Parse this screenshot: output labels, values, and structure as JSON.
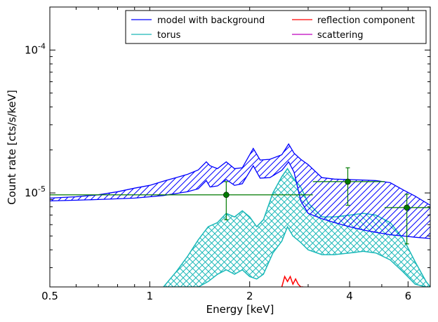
{
  "chart_data": {
    "type": "line",
    "title": "",
    "xlabel": "Energy [keV]",
    "ylabel": "Count rate [cts/s/keV]",
    "xscale": "log",
    "yscale": "log",
    "xlim": [
      0.5,
      7.0
    ],
    "ylim": [
      2.2e-06,
      0.0002
    ],
    "grid": false,
    "legend_position": "top-right",
    "x_ticks": [
      {
        "value": 0.5,
        "label": "0.5"
      },
      {
        "value": 1,
        "label": "1"
      },
      {
        "value": 2,
        "label": "2"
      },
      {
        "value": 4,
        "label": "4"
      },
      {
        "value": 6,
        "label": "6"
      }
    ],
    "y_ticks": [
      {
        "value": 1e-05,
        "base": "10",
        "exp": "-5"
      },
      {
        "value": 0.0001,
        "base": "10",
        "exp": "-4"
      }
    ],
    "series": [
      {
        "name": "model with background",
        "color": "#0000ff",
        "style": "hatched band",
        "x": [
          0.5,
          0.6,
          0.7,
          0.8,
          0.9,
          1.0,
          1.1,
          1.2,
          1.3,
          1.4,
          1.48,
          1.52,
          1.6,
          1.7,
          1.8,
          1.9,
          2.05,
          2.15,
          2.3,
          2.5,
          2.62,
          2.72,
          2.85,
          3.0,
          3.3,
          3.6,
          4.0,
          4.4,
          4.8,
          5.3,
          5.8,
          6.3,
          7.0
        ],
        "upper": [
          9.2e-06,
          9.4e-06,
          9.7e-06,
          1.02e-05,
          1.08e-05,
          1.13e-05,
          1.21e-05,
          1.28e-05,
          1.35e-05,
          1.45e-05,
          1.65e-05,
          1.55e-05,
          1.48e-05,
          1.65e-05,
          1.48e-05,
          1.5e-05,
          2.05e-05,
          1.7e-05,
          1.72e-05,
          1.85e-05,
          2.2e-05,
          1.9e-05,
          1.72e-05,
          1.58e-05,
          1.28e-05,
          1.25e-05,
          1.24e-05,
          1.23e-05,
          1.22e-05,
          1.18e-05,
          1.05e-05,
          9.5e-06,
          8.2e-06
        ],
        "lower": [
          8.8e-06,
          8.9e-06,
          9e-06,
          9.1e-06,
          9.2e-06,
          9.4e-06,
          9.6e-06,
          9.9e-06,
          1.02e-05,
          1.07e-05,
          1.22e-05,
          1.1e-05,
          1.12e-05,
          1.24e-05,
          1.13e-05,
          1.16e-05,
          1.55e-05,
          1.27e-05,
          1.28e-05,
          1.44e-05,
          1.65e-05,
          1.4e-05,
          8.8e-06,
          7.2e-06,
          6.6e-06,
          6.2e-06,
          5.8e-06,
          5.5e-06,
          5.3e-06,
          5.1e-06,
          5e-06,
          4.9e-06,
          4.8e-06
        ]
      },
      {
        "name": "torus",
        "color": "#1ab8b8",
        "style": "cross-hatched band",
        "x": [
          1.1,
          1.2,
          1.3,
          1.4,
          1.5,
          1.6,
          1.7,
          1.8,
          1.9,
          2.0,
          2.1,
          2.2,
          2.35,
          2.5,
          2.6,
          2.7,
          2.85,
          3.0,
          3.3,
          3.6,
          4.0,
          4.4,
          4.8,
          5.3,
          5.8,
          6.3,
          6.8,
          7.0
        ],
        "upper": [
          2.2e-06,
          2.8e-06,
          3.6e-06,
          4.7e-06,
          5.8e-06,
          6.2e-06,
          7.2e-06,
          6.8e-06,
          7.5e-06,
          6.8e-06,
          5.8e-06,
          6.5e-06,
          1e-05,
          1.3e-05,
          1.48e-05,
          1.28e-05,
          1.1e-05,
          8.5e-06,
          6.8e-06,
          6.8e-06,
          7e-06,
          7.2e-06,
          7e-06,
          6.2e-06,
          4.8e-06,
          3.3e-06,
          2.4e-06,
          2.2e-06
        ],
        "lower": [
          2.2e-06,
          2.2e-06,
          2.2e-06,
          2.2e-06,
          2.4e-06,
          2.7e-06,
          2.9e-06,
          2.7e-06,
          2.9e-06,
          2.6e-06,
          2.5e-06,
          2.7e-06,
          3.8e-06,
          4.6e-06,
          5.8e-06,
          5e-06,
          4.5e-06,
          4e-06,
          3.7e-06,
          3.7e-06,
          3.8e-06,
          3.9e-06,
          3.8e-06,
          3.4e-06,
          2.8e-06,
          2.3e-06,
          2.2e-06,
          2.2e-06
        ]
      },
      {
        "name": "reflection component",
        "color": "#ff0000",
        "style": "line",
        "x": [
          2.5,
          2.55,
          2.6,
          2.65,
          2.7,
          2.75,
          2.8,
          2.85,
          2.9
        ],
        "y": [
          2.2e-06,
          2.6e-06,
          2.4e-06,
          2.6e-06,
          2.3e-06,
          2.5e-06,
          2.3e-06,
          2.2e-06,
          2.2e-06
        ]
      },
      {
        "name": "scattering",
        "color": "#bf00bf",
        "style": "line",
        "x": [],
        "y": []
      },
      {
        "name": "data",
        "color": "#007a00",
        "style": "points with error bars",
        "points": [
          {
            "x": 0.5,
            "xlo": 0.5,
            "xhi": 0.5,
            "y": 9.7e-06,
            "ylo": 9.7e-06,
            "yhi": 9.7e-06
          },
          {
            "x": 1.7,
            "xlo": 0.5,
            "xhi": 3.1,
            "y": 9.7e-06,
            "ylo": 6.5e-06,
            "yhi": 1.2e-05
          },
          {
            "x": 3.95,
            "xlo": 3.1,
            "xhi": 5.1,
            "y": 1.2e-05,
            "ylo": 8.2e-06,
            "yhi": 1.5e-05
          },
          {
            "x": 5.95,
            "xlo": 5.1,
            "xhi": 7.0,
            "y": 7.9e-06,
            "ylo": 4.4e-06,
            "yhi": 9.8e-06
          }
        ]
      }
    ]
  },
  "legend": {
    "items": [
      {
        "label": "model with background",
        "color": "#0000ff"
      },
      {
        "label": "reflection component",
        "color": "#ff0000"
      },
      {
        "label": "torus",
        "color": "#1ab8b8"
      },
      {
        "label": "scattering",
        "color": "#bf00bf"
      }
    ]
  }
}
